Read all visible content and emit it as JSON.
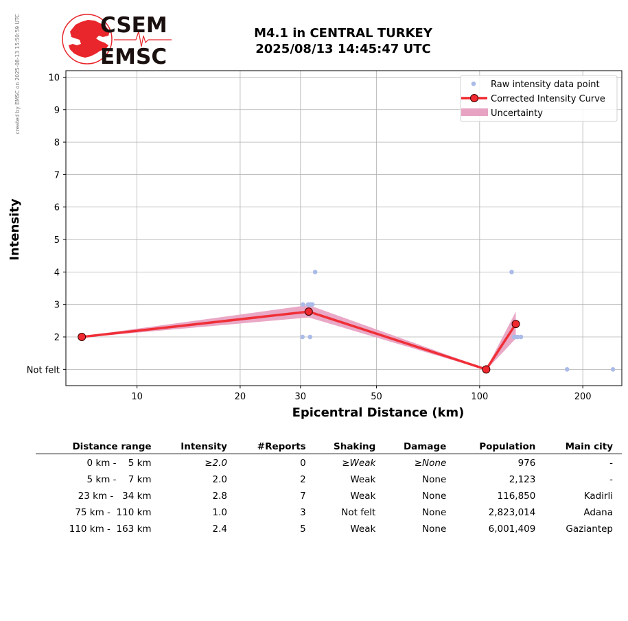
{
  "side_note": "created by EMSC on 2025-08-13 15:50:59 UTC",
  "logo": {
    "top_text": "CSEM",
    "bottom_text": "EMSC",
    "color": "#e8262b"
  },
  "chart_data": {
    "type": "line",
    "title": [
      "M4.1 in CENTRAL TURKEY",
      "2025/08/13 14:45:47 UTC"
    ],
    "xlabel": "Epicentral Distance (km)",
    "ylabel": "Intensity",
    "xscale": "log",
    "xlim": [
      6.2,
      260
    ],
    "ylim": [
      0.5,
      10.2
    ],
    "xticks": [
      10,
      20,
      30,
      50,
      100,
      200
    ],
    "yticks": [
      1,
      2,
      3,
      4,
      5,
      6,
      7,
      8,
      9,
      10
    ],
    "ytick_labels": [
      "Not felt",
      "2",
      "3",
      "4",
      "5",
      "6",
      "7",
      "8",
      "9",
      "10"
    ],
    "grid": true,
    "legend_position": "top-right",
    "series": [
      {
        "name": "Raw intensity data point",
        "kind": "scatter",
        "color": "#aabbe8",
        "points": [
          [
            30.5,
            3
          ],
          [
            31.6,
            3
          ],
          [
            32.1,
            3
          ],
          [
            32.5,
            3
          ],
          [
            33.1,
            4
          ],
          [
            30.4,
            2
          ],
          [
            32.0,
            2
          ],
          [
            124,
            4
          ],
          [
            126,
            2
          ],
          [
            127,
            2
          ],
          [
            129,
            2
          ],
          [
            132,
            2
          ],
          [
            180,
            1
          ],
          [
            245,
            1
          ]
        ]
      },
      {
        "name": "Corrected Intensity Curve",
        "kind": "line",
        "color": "#f0282f",
        "points": [
          [
            6.9,
            2.0
          ],
          [
            31.7,
            2.78
          ],
          [
            104.5,
            1.0
          ],
          [
            127.5,
            2.4
          ]
        ]
      },
      {
        "name": "Uncertainty",
        "kind": "band",
        "color": "#e8a3c3",
        "upper": [
          [
            6.9,
            2.02
          ],
          [
            31.7,
            2.98
          ],
          [
            104.5,
            1.02
          ],
          [
            127.5,
            2.78
          ]
        ],
        "lower": [
          [
            6.9,
            1.98
          ],
          [
            31.7,
            2.6
          ],
          [
            104.5,
            0.98
          ],
          [
            127.5,
            1.95
          ]
        ]
      }
    ]
  },
  "table": {
    "headers": [
      "Distance range",
      "Intensity",
      "#Reports",
      "Shaking",
      "Damage",
      "Population",
      "Main city"
    ],
    "rows": [
      [
        "0 km -    5 km",
        "≥2.0",
        "0",
        "≥Weak",
        "≥None",
        "976",
        "-"
      ],
      [
        "5 km -    7 km",
        "2.0",
        "2",
        "Weak",
        "None",
        "2,123",
        "-"
      ],
      [
        "23 km -   34 km",
        "2.8",
        "7",
        "Weak",
        "None",
        "116,850",
        "Kadirli"
      ],
      [
        "75 km -  110 km",
        "1.0",
        "3",
        "Not felt",
        "None",
        "2,823,014",
        "Adana"
      ],
      [
        "110 km -  163 km",
        "2.4",
        "5",
        "Weak",
        "None",
        "6,001,409",
        "Gaziantep"
      ]
    ],
    "italic_row": 0
  }
}
